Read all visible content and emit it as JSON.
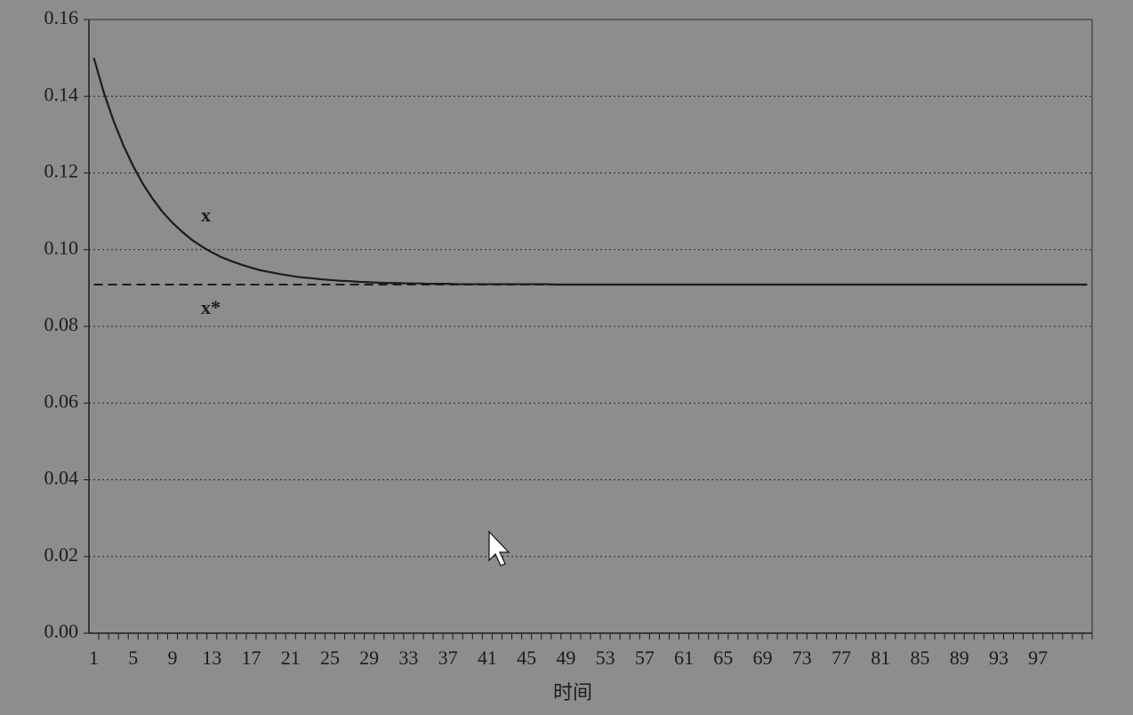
{
  "chart_data": {
    "type": "line",
    "xlabel": "时间",
    "categories": [
      1,
      null,
      null,
      null,
      5,
      null,
      null,
      null,
      9,
      null,
      null,
      null,
      13,
      null,
      null,
      null,
      17,
      null,
      null,
      null,
      21,
      null,
      null,
      null,
      25,
      null,
      null,
      null,
      29,
      null,
      null,
      null,
      33,
      null,
      null,
      null,
      37,
      null,
      null,
      null,
      41,
      null,
      null,
      null,
      45,
      null,
      null,
      null,
      49,
      null,
      null,
      null,
      53,
      null,
      null,
      null,
      57,
      null,
      null,
      null,
      61,
      null,
      null,
      null,
      65,
      null,
      null,
      null,
      69,
      null,
      null,
      null,
      73,
      null,
      null,
      null,
      77,
      null,
      null,
      null,
      81,
      null,
      null,
      null,
      85,
      null,
      null,
      null,
      89,
      null,
      null,
      null,
      93,
      null,
      null,
      null,
      97,
      null,
      null,
      null,
      null,
      null
    ],
    "series": [
      {
        "name": "x",
        "color": "#1c1c1c",
        "values": [
          0.15,
          0.1411,
          0.1336,
          0.1272,
          0.1218,
          0.1171,
          0.1132,
          0.1098,
          0.107,
          0.1046,
          0.1025,
          0.1008,
          0.0993,
          0.098,
          0.097,
          0.0961,
          0.0953,
          0.0946,
          0.0941,
          0.0936,
          0.0932,
          0.0928,
          0.0926,
          0.0923,
          0.0921,
          0.0919,
          0.0918,
          0.0916,
          0.0915,
          0.0914,
          0.0913,
          0.0913,
          0.0912,
          0.0912,
          0.0911,
          0.0911,
          0.0911,
          0.091,
          0.091,
          0.091,
          0.091,
          0.091,
          0.091,
          0.091,
          0.091,
          0.091,
          0.091,
          0.0909,
          0.0909,
          0.0909,
          0.0909,
          0.0909,
          0.0909,
          0.0909,
          0.0909,
          0.0909,
          0.0909,
          0.0909,
          0.0909,
          0.0909,
          0.0909,
          0.0909,
          0.0909,
          0.0909,
          0.0909,
          0.0909,
          0.0909,
          0.0909,
          0.0909,
          0.0909,
          0.0909,
          0.0909,
          0.0909,
          0.0909,
          0.0909,
          0.0909,
          0.0909,
          0.0909,
          0.0909,
          0.0909,
          0.0909,
          0.0909,
          0.0909,
          0.0909,
          0.0909,
          0.0909,
          0.0909,
          0.0909,
          0.0909,
          0.0909,
          0.0909,
          0.0909,
          0.0909,
          0.0909,
          0.0909,
          0.0909,
          0.0909,
          0.0909,
          0.0909,
          0.0909,
          0.0909,
          0.0909
        ]
      }
    ],
    "reference_line": {
      "name": "x*",
      "value": 0.0909,
      "color": "#1c1c1c",
      "style": "dashed"
    },
    "ylim": [
      0,
      0.16
    ],
    "yticks": [
      {
        "value": 0,
        "label": "0.00"
      },
      0.02,
      0.04,
      0.06,
      0.08,
      {
        "value": 0.1,
        "label": "0.10"
      },
      0.12,
      0.14,
      0.16
    ],
    "grid": true
  }
}
